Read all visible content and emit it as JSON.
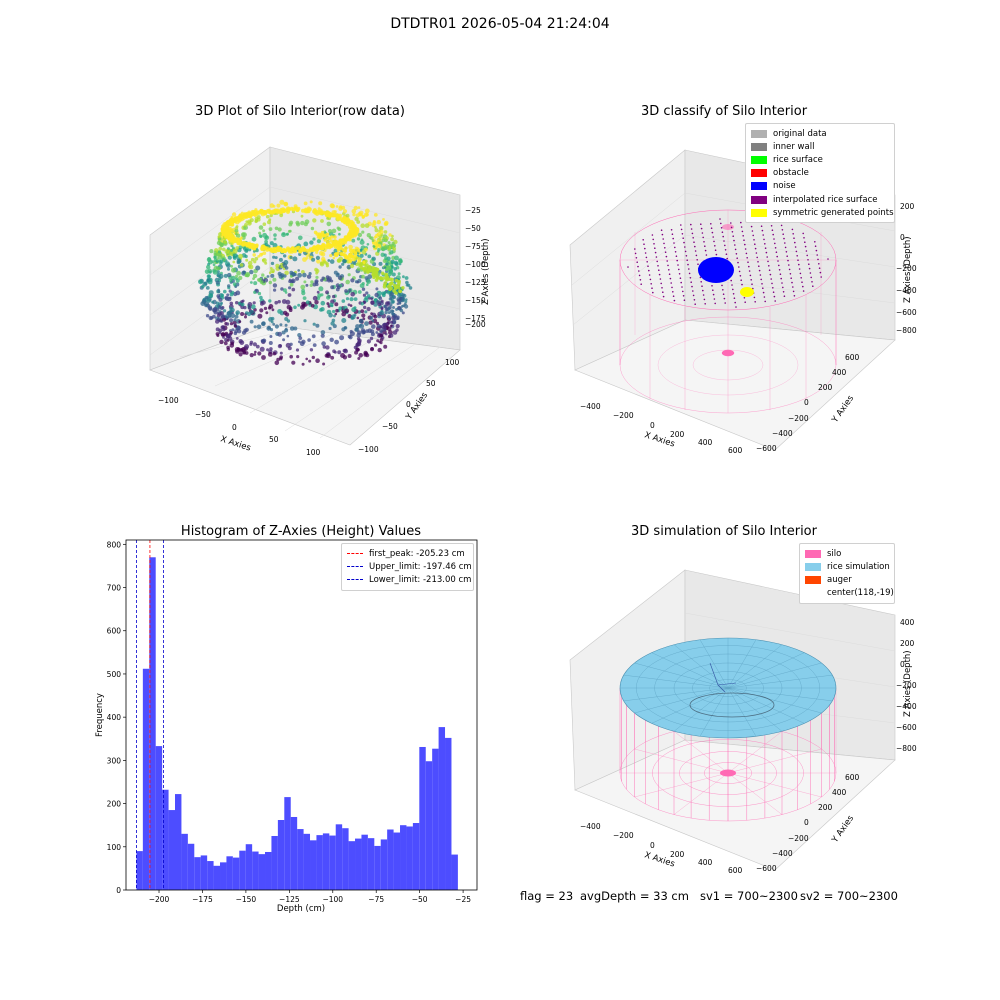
{
  "figure": {
    "title": "DTDTR01 2026-05-04 21:24:04"
  },
  "colors": {
    "hist_bar": "#4d4dff",
    "peak_line": "#ff0000",
    "limit_line": "#0000cc",
    "silo": "#ff69b4",
    "rice_sim": "#87ceeb",
    "auger": "#ff4500",
    "noise": "#0000ff",
    "symmetric": "#ffff00",
    "interp": "#800080"
  },
  "plot_raw": {
    "title": "3D Plot of Silo Interior(row data)",
    "xlabel": "X Axies",
    "ylabel": "Y Axies",
    "zlabel": "Z Axies (Depth)",
    "x_ticks": [
      "−100",
      "−50",
      "0",
      "50",
      "100"
    ],
    "y_ticks": [
      "100",
      "50",
      "0",
      "−50",
      "−100"
    ],
    "z_ticks": [
      "−25",
      "−50",
      "−75",
      "−100",
      "−125",
      "−150",
      "−175",
      "−200"
    ]
  },
  "plot_classify": {
    "title": "3D classify of Silo Interior",
    "xlabel": "X Axies",
    "ylabel": "Y Axies",
    "zlabel": "Z Axies (Depth)",
    "x_ticks": [
      "−400",
      "−200",
      "0",
      "200",
      "400",
      "600"
    ],
    "y_ticks": [
      "600",
      "400",
      "200",
      "0",
      "−200",
      "−400",
      "−600"
    ],
    "z_ticks": [
      "200",
      "0",
      "−200",
      "−400",
      "−600",
      "−800"
    ],
    "legend": [
      {
        "label": "original data",
        "color": "#b0b0b0"
      },
      {
        "label": "inner wall",
        "color": "#808080"
      },
      {
        "label": "rice surface",
        "color": "#00ff00"
      },
      {
        "label": "obstacle",
        "color": "#ff0000"
      },
      {
        "label": "noise",
        "color": "#0000ff"
      },
      {
        "label": "interpolated rice surface",
        "color": "#800080"
      },
      {
        "label": "symmetric generated points",
        "color": "#ffff00"
      }
    ]
  },
  "plot_sim": {
    "title": "3D simulation of Silo Interior",
    "xlabel": "X Axies",
    "ylabel": "Y Axies",
    "zlabel": "Z Axies (Depth)",
    "x_ticks": [
      "−400",
      "−200",
      "0",
      "200",
      "400",
      "600"
    ],
    "y_ticks": [
      "600",
      "400",
      "200",
      "0",
      "−200",
      "−400",
      "−600"
    ],
    "z_ticks": [
      "400",
      "200",
      "0",
      "−200",
      "−400",
      "−600",
      "−800"
    ],
    "legend": [
      {
        "label": "silo",
        "color": "#ff69b4"
      },
      {
        "label": "rice simulation",
        "color": "#87ceeb"
      },
      {
        "label": "auger",
        "color": "#ff4500"
      },
      {
        "label": "center(118,-19)",
        "color": ""
      }
    ]
  },
  "footer": {
    "flag": "flag = 23",
    "avg_depth": "avgDepth = 33 cm",
    "sv1": "sv1 = 700~2300",
    "sv2": "sv2 = 700~2300"
  },
  "chart_data": {
    "type": "bar",
    "title": "Histogram of Z-Axies (Height) Values",
    "xlabel": "Depth (cm)",
    "ylabel": "Frequency",
    "xlim": [
      -219,
      -17
    ],
    "ylim": [
      0,
      810
    ],
    "x_ticks": [
      -200,
      -175,
      -150,
      -125,
      -100,
      -75,
      -50,
      -25
    ],
    "y_ticks": [
      0,
      100,
      200,
      300,
      400,
      500,
      600,
      700,
      800
    ],
    "bin_width": 3.7,
    "bin_start": -213.0,
    "values": [
      90,
      512,
      770,
      333,
      232,
      185,
      222,
      130,
      107,
      76,
      80,
      67,
      56,
      64,
      78,
      75,
      91,
      106,
      89,
      83,
      88,
      125,
      162,
      215,
      169,
      141,
      130,
      115,
      127,
      131,
      126,
      152,
      143,
      113,
      119,
      128,
      120,
      102,
      117,
      140,
      133,
      150,
      147,
      155,
      331,
      298,
      327,
      377,
      352,
      82
    ],
    "vlines": [
      {
        "label": "first_peak: -205.23 cm",
        "x": -205.23,
        "color": "#ff0000"
      },
      {
        "label": "Upper_limit: -197.46 cm",
        "x": -197.46,
        "color": "#0000cc"
      },
      {
        "label": "Lower_limit: -213.00 cm",
        "x": -213.0,
        "color": "#0000cc"
      }
    ],
    "legend_position": "top-right"
  }
}
